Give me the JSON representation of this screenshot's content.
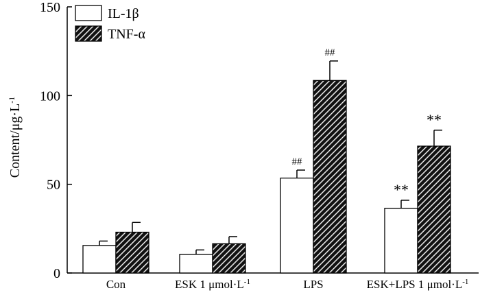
{
  "chart_data": {
    "type": "bar",
    "title": "",
    "xlabel": "",
    "ylabel": "Content/μg·L",
    "ylabel_superscript": "-1",
    "ylim": [
      0,
      150
    ],
    "yticks": [
      0,
      50,
      100,
      150
    ],
    "grid": false,
    "legend_position": "top-left",
    "categories": [
      {
        "label": "Con",
        "sup": ""
      },
      {
        "label": "ESK 1 μmol·L",
        "sup": "-1"
      },
      {
        "label": "LPS",
        "sup": ""
      },
      {
        "label": "ESK+LPS 1 μmol·L",
        "sup": "-1"
      }
    ],
    "series": [
      {
        "name": "IL-1β",
        "fill": "white",
        "values": [
          15.5,
          10.5,
          53.5,
          36.5
        ],
        "errors": [
          2.5,
          2.5,
          4.5,
          4.5
        ],
        "annotations": [
          "",
          "",
          "##",
          "**"
        ]
      },
      {
        "name": "TNF-α",
        "fill": "hatched",
        "values": [
          23,
          16.5,
          108.5,
          71.5
        ],
        "errors": [
          5.5,
          4,
          11,
          9
        ],
        "annotations": [
          "",
          "",
          "##",
          "**"
        ]
      }
    ]
  }
}
